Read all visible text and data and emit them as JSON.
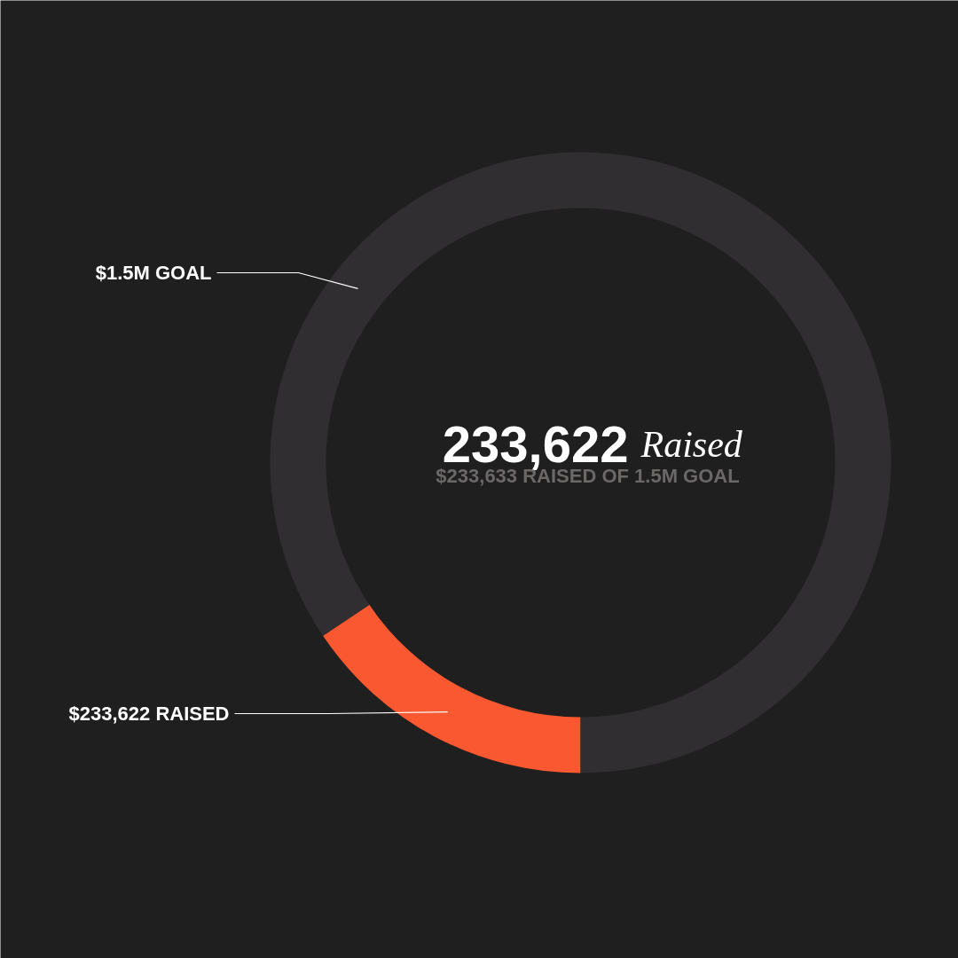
{
  "chart_data": {
    "type": "donut",
    "title": "233,622",
    "subtitle": "$233,633 RAISED OF 1.5M GOAL",
    "annotations": [
      "Raised"
    ],
    "categories": [
      "$233,622 RAISED",
      "$1.5M GOAL"
    ],
    "values": [
      233622,
      1266378
    ],
    "colors": [
      "#f95830",
      "#302e31"
    ]
  }
}
